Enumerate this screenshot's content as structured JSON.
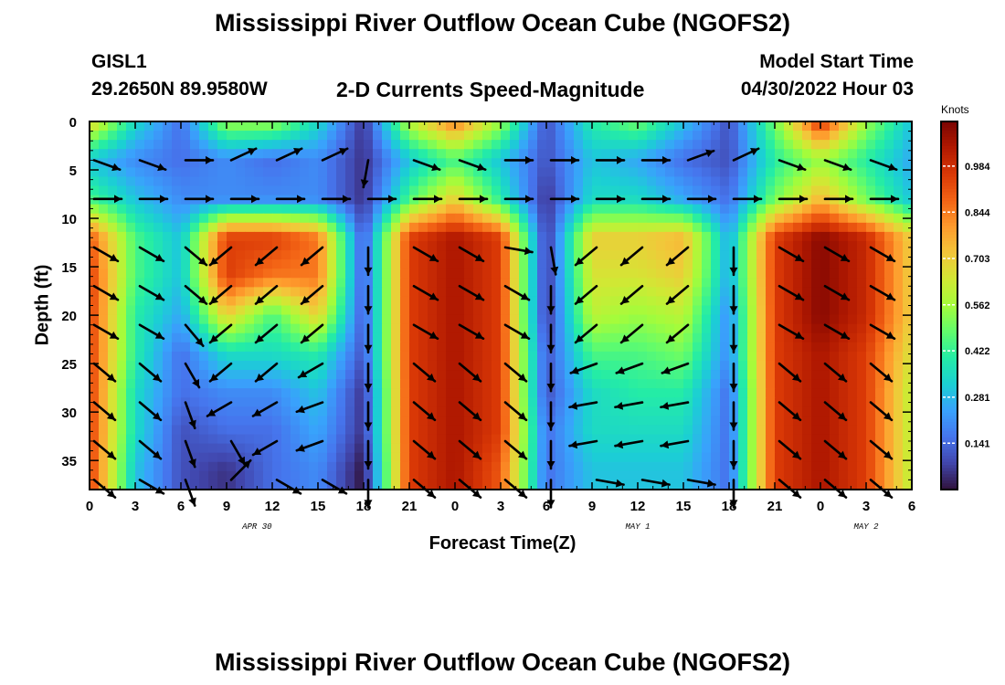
{
  "header": {
    "title": "Mississippi River Outflow Ocean Cube (NGOFS2)",
    "station": "GISL1",
    "coords": "29.2650N  89.9580W",
    "subtitle": "2-D Currents Speed-Magnitude",
    "model_label": "Model Start Time",
    "model_time": "04/30/2022 Hour 03",
    "bottom_title": "Mississippi River Outflow Ocean Cube (NGOFS2)"
  },
  "colorbar": {
    "unit": "Knots",
    "ticks": [
      "0.984",
      "0.844",
      "0.703",
      "0.562",
      "0.422",
      "0.281",
      "0.141"
    ],
    "tick_values": [
      0.984,
      0.844,
      0.703,
      0.562,
      0.422,
      0.281,
      0.141
    ],
    "min": 0.0,
    "max": 1.12,
    "colors": [
      "#30123b",
      "#4145ab",
      "#4675ed",
      "#39a2fc",
      "#1bcfd4",
      "#24eca6",
      "#61fc6c",
      "#a4fc3b",
      "#d1e834",
      "#f3c63a",
      "#fe9b2d",
      "#f36315",
      "#d93806",
      "#b11901",
      "#7a0402"
    ]
  },
  "chart_data": {
    "type": "heatmap",
    "title": "2-D Currents Speed-Magnitude",
    "xlabel": "Forecast Time(Z)",
    "ylabel": "Depth (ft)",
    "x_tick_labels": [
      "0",
      "3",
      "6",
      "9",
      "12",
      "15",
      "18",
      "21",
      "0",
      "3",
      "6",
      "9",
      "12",
      "15",
      "18",
      "21",
      "0",
      "3",
      "6"
    ],
    "x_hours": [
      0,
      3,
      6,
      9,
      12,
      15,
      18,
      21,
      24,
      27,
      30,
      33,
      36,
      39,
      42,
      45,
      48,
      51,
      54
    ],
    "date_labels": [
      {
        "text": "APR 30",
        "hour": 11
      },
      {
        "text": "MAY 1",
        "hour": 36
      },
      {
        "text": "MAY 2",
        "hour": 51
      }
    ],
    "xlim": [
      0,
      54
    ],
    "y_tick_labels": [
      "0",
      "5",
      "10",
      "15",
      "20",
      "25",
      "30",
      "35"
    ],
    "y_ticks": [
      0,
      5,
      10,
      15,
      20,
      25,
      30,
      35
    ],
    "ylim": [
      0,
      38
    ],
    "y_inverted": true,
    "time_hours": [
      0,
      3,
      6,
      9,
      12,
      15,
      18,
      21,
      24,
      27,
      30,
      33,
      36,
      39,
      42,
      45,
      48,
      51,
      54
    ],
    "depth_ft": [
      0,
      4,
      8,
      12,
      16,
      20,
      24,
      28,
      32,
      36,
      38
    ],
    "speed_knots": [
      [
        0.7,
        0.35,
        0.15,
        0.55,
        0.55,
        0.35,
        0.05,
        0.6,
        0.85,
        0.55,
        0.1,
        0.4,
        0.5,
        0.3,
        0.1,
        0.5,
        0.98,
        0.55,
        0.3
      ],
      [
        0.3,
        0.2,
        0.15,
        0.2,
        0.15,
        0.2,
        0.05,
        0.3,
        0.45,
        0.3,
        0.1,
        0.3,
        0.25,
        0.15,
        0.1,
        0.4,
        0.55,
        0.4,
        0.25
      ],
      [
        0.45,
        0.3,
        0.2,
        0.2,
        0.2,
        0.2,
        0.05,
        0.45,
        0.7,
        0.4,
        0.05,
        0.35,
        0.35,
        0.25,
        0.15,
        0.5,
        0.75,
        0.5,
        0.3
      ],
      [
        0.9,
        0.45,
        0.3,
        0.95,
        0.95,
        0.85,
        0.1,
        0.95,
        1.05,
        0.95,
        0.05,
        0.7,
        0.7,
        0.75,
        0.25,
        0.95,
        1.1,
        1.0,
        0.7
      ],
      [
        0.95,
        0.45,
        0.3,
        0.95,
        0.85,
        0.85,
        0.1,
        0.95,
        1.05,
        0.95,
        0.05,
        0.65,
        0.65,
        0.7,
        0.25,
        0.95,
        1.1,
        1.0,
        0.7
      ],
      [
        0.95,
        0.4,
        0.25,
        0.7,
        0.45,
        0.7,
        0.1,
        0.95,
        1.05,
        0.95,
        0.05,
        0.6,
        0.55,
        0.6,
        0.2,
        0.95,
        1.1,
        1.0,
        0.7
      ],
      [
        0.95,
        0.4,
        0.15,
        0.35,
        0.35,
        0.4,
        0.1,
        0.95,
        1.05,
        0.95,
        0.1,
        0.45,
        0.45,
        0.5,
        0.2,
        0.95,
        1.05,
        0.95,
        0.65
      ],
      [
        0.95,
        0.35,
        0.15,
        0.2,
        0.2,
        0.3,
        0.05,
        0.95,
        1.05,
        0.95,
        0.1,
        0.35,
        0.4,
        0.4,
        0.15,
        0.95,
        1.05,
        0.95,
        0.6
      ],
      [
        0.95,
        0.35,
        0.1,
        0.15,
        0.15,
        0.25,
        0.05,
        0.95,
        1.05,
        0.95,
        0.15,
        0.35,
        0.35,
        0.35,
        0.15,
        0.95,
        1.05,
        0.95,
        0.6
      ],
      [
        0.95,
        0.3,
        0.1,
        0.05,
        0.15,
        0.2,
        0.0,
        0.95,
        1.05,
        0.9,
        0.15,
        0.3,
        0.3,
        0.3,
        0.15,
        0.95,
        1.05,
        0.95,
        0.6
      ],
      [
        0.95,
        0.3,
        0.1,
        0.05,
        0.15,
        0.2,
        0.0,
        0.95,
        1.05,
        0.9,
        0.15,
        0.3,
        0.3,
        0.3,
        0.15,
        0.95,
        1.05,
        0.95,
        0.6
      ]
    ],
    "vectors": [
      {
        "depth_ft": 4,
        "dirs": [
          20,
          20,
          0,
          -25,
          -25,
          -25,
          100,
          20,
          20,
          0,
          0,
          0,
          0,
          -20,
          -25,
          20,
          20,
          20
        ]
      },
      {
        "depth_ft": 8,
        "dirs": [
          0,
          0,
          0,
          0,
          0,
          0,
          0,
          0,
          0,
          0,
          0,
          0,
          0,
          0,
          0,
          0,
          0,
          0
        ]
      },
      {
        "depth_ft": 13,
        "dirs": [
          30,
          30,
          40,
          140,
          140,
          140,
          90,
          30,
          30,
          10,
          80,
          140,
          140,
          140,
          90,
          30,
          30,
          30
        ]
      },
      {
        "depth_ft": 17,
        "dirs": [
          30,
          30,
          40,
          140,
          140,
          140,
          90,
          30,
          30,
          30,
          90,
          140,
          140,
          140,
          90,
          30,
          30,
          30
        ]
      },
      {
        "depth_ft": 21,
        "dirs": [
          30,
          30,
          50,
          140,
          140,
          140,
          90,
          30,
          30,
          30,
          90,
          140,
          140,
          140,
          90,
          30,
          30,
          30
        ]
      },
      {
        "depth_ft": 25,
        "dirs": [
          40,
          40,
          60,
          140,
          140,
          150,
          90,
          40,
          40,
          40,
          90,
          160,
          160,
          160,
          90,
          40,
          40,
          40
        ]
      },
      {
        "depth_ft": 29,
        "dirs": [
          40,
          40,
          70,
          150,
          150,
          160,
          90,
          40,
          40,
          40,
          90,
          170,
          170,
          170,
          90,
          40,
          40,
          40
        ]
      },
      {
        "depth_ft": 33,
        "dirs": [
          40,
          40,
          70,
          60,
          150,
          160,
          90,
          40,
          40,
          40,
          90,
          170,
          170,
          170,
          90,
          40,
          40,
          40
        ]
      },
      {
        "depth_ft": 37,
        "dirs": [
          40,
          30,
          70,
          -45,
          30,
          30,
          90,
          40,
          40,
          40,
          90,
          10,
          10,
          10,
          90,
          40,
          40,
          40
        ]
      }
    ]
  }
}
